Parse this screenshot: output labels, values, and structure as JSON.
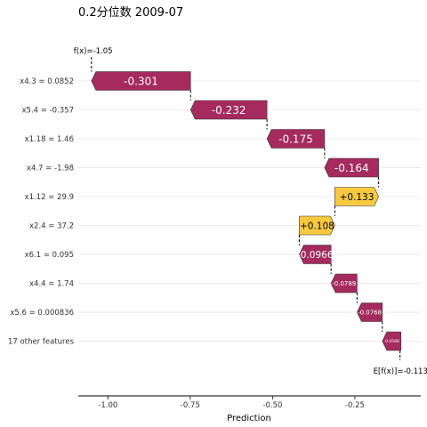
{
  "chart_data": {
    "type": "bar",
    "subtype": "shap-waterfall",
    "title": "0.2分位数 2009-07",
    "xlabel": "Prediction",
    "xlim": [
      -1.09,
      -0.05
    ],
    "xticks": [
      -1.0,
      -0.75,
      -0.5,
      -0.25
    ],
    "xtick_labels": [
      "-1.00",
      "-0.75",
      "-0.50",
      "-0.25"
    ],
    "fx_label": "f(x)=-1.05",
    "fx_value": -1.05,
    "efx_label": "E[f(x)]=-0.113",
    "efx_value": -0.113,
    "colors": {
      "negative": "#a52a5d",
      "positive": "#f7c940"
    },
    "bars": [
      {
        "feature": "x4.3 = 0.0852",
        "value": -0.301,
        "label": "-0.301"
      },
      {
        "feature": "x5.4 = -0.357",
        "value": -0.232,
        "label": "-0.232"
      },
      {
        "feature": "x1.18 = 1.46",
        "value": -0.175,
        "label": "-0.175"
      },
      {
        "feature": "x4.7 = -1.98",
        "value": -0.164,
        "label": "-0.164"
      },
      {
        "feature": "x1.12 = 29.9",
        "value": 0.133,
        "label": "+0.133"
      },
      {
        "feature": "x2.4 = 37.2",
        "value": 0.108,
        "label": "+0.108"
      },
      {
        "feature": "x6.1 = 0.095",
        "value": -0.0966,
        "label": "-0.0966"
      },
      {
        "feature": "x4.4 = 1.74",
        "value": -0.0789,
        "label": "-0.0789"
      },
      {
        "feature": "x5.6 = 0.000836",
        "value": -0.0768,
        "label": "-0.0768"
      },
      {
        "feature": "17 other features",
        "value": -0.0566,
        "label": "-0.0566"
      }
    ]
  }
}
